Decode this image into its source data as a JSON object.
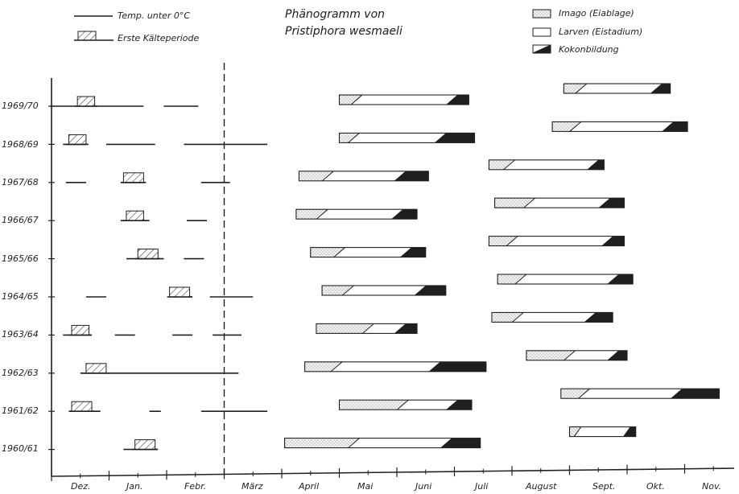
{
  "title": [
    "Phänogramm von",
    "Pristiphora wesmaeli"
  ],
  "legend": {
    "frost": "Temp. unter 0°C",
    "first_cold": "Erste Kälteperiode",
    "imago": "Imago (Eiablage)",
    "larvae": "Larven (Eistadium)",
    "cocoon": "Kokonbildung"
  },
  "colors": {
    "ink": "#1f1f1f",
    "imago_fill": "#eeeeee",
    "larvae_fill": "#ffffff",
    "cocoon_fill": "#1f1f1f",
    "hatch": "#333333"
  },
  "chart_data": {
    "type": "gantt",
    "x_axis": {
      "unit": "month",
      "range": [
        "Nov",
        "Nov"
      ],
      "tick_labels": [
        "Dez.",
        "Jan.",
        "Febr.",
        "März",
        "April",
        "Mai",
        "Juni",
        "Juli",
        "August",
        "Sept.",
        "Okt.",
        "Nov."
      ]
    },
    "divider_month": "März",
    "seasons": [
      {
        "label": "1969/70",
        "frost": [
          [
            -0.02,
            1.6
          ],
          [
            1.95,
            2.55
          ]
        ],
        "first_cold": [
          0.45,
          0.75
        ],
        "generations": [
          {
            "imago": [
              5.0,
              5.4
            ],
            "larvae": [
              5.4,
              7.05
            ],
            "cocoon": [
              7.05,
              7.25
            ]
          },
          {
            "imago": [
              8.9,
              9.3
            ],
            "larvae": [
              9.3,
              10.6
            ],
            "cocoon": [
              10.6,
              10.75
            ]
          }
        ]
      },
      {
        "label": "1968/69",
        "frost": [
          [
            0.2,
            0.6
          ],
          [
            0.95,
            1.8
          ],
          [
            2.3,
            3.75
          ]
        ],
        "first_cold": [
          0.3,
          0.6
        ],
        "generations": [
          {
            "imago": [
              5.0,
              5.35
            ],
            "larvae": [
              5.35,
              6.85
            ],
            "cocoon": [
              6.85,
              7.35
            ]
          },
          {
            "imago": [
              8.7,
              9.2
            ],
            "larvae": [
              9.2,
              10.8
            ],
            "cocoon": [
              10.8,
              11.05
            ]
          }
        ]
      },
      {
        "label": "1967/68",
        "frost": [
          [
            0.25,
            0.6
          ],
          [
            1.2,
            1.6
          ],
          [
            2.6,
            3.1
          ]
        ],
        "first_cold": [
          1.25,
          1.6
        ],
        "generations": [
          {
            "imago": [
              4.3,
              4.9
            ],
            "larvae": [
              4.9,
              6.15
            ],
            "cocoon": [
              6.15,
              6.55
            ]
          },
          {
            "imago": [
              7.6,
              8.05
            ],
            "larvae": [
              8.05,
              9.5
            ],
            "cocoon": [
              9.5,
              9.6
            ]
          }
        ]
      },
      {
        "label": "1966/67",
        "frost": [
          [
            1.2,
            1.7
          ],
          [
            2.35,
            2.7
          ]
        ],
        "first_cold": [
          1.3,
          1.6
        ],
        "generations": [
          {
            "imago": [
              4.25,
              4.8
            ],
            "larvae": [
              4.8,
              6.1
            ],
            "cocoon": [
              6.1,
              6.35
            ]
          },
          {
            "imago": [
              7.7,
              8.4
            ],
            "larvae": [
              8.4,
              9.7
            ],
            "cocoon": [
              9.7,
              9.95
            ]
          }
        ]
      },
      {
        "label": "1965/66",
        "frost": [
          [
            1.3,
            1.95
          ],
          [
            2.3,
            2.65
          ]
        ],
        "first_cold": [
          1.5,
          1.85
        ],
        "generations": [
          {
            "imago": [
              4.5,
              5.1
            ],
            "larvae": [
              5.1,
              6.25
            ],
            "cocoon": [
              6.25,
              6.5
            ]
          },
          {
            "imago": [
              7.6,
              8.1
            ],
            "larvae": [
              8.1,
              9.75
            ],
            "cocoon": [
              9.75,
              9.95
            ]
          }
        ]
      },
      {
        "label": "1964/65",
        "frost": [
          [
            0.6,
            0.95
          ],
          [
            2.05,
            2.45
          ],
          [
            2.75,
            3.5
          ]
        ],
        "first_cold": [
          2.05,
          2.4
        ],
        "generations": [
          {
            "imago": [
              4.7,
              5.25
            ],
            "larvae": [
              5.25,
              6.5
            ],
            "cocoon": [
              6.5,
              6.85
            ]
          },
          {
            "imago": [
              7.75,
              8.25
            ],
            "larvae": [
              8.25,
              9.85
            ],
            "cocoon": [
              9.85,
              10.1
            ]
          }
        ]
      },
      {
        "label": "1963/64",
        "frost": [
          [
            0.2,
            0.7
          ],
          [
            1.1,
            1.45
          ],
          [
            2.1,
            2.45
          ],
          [
            2.8,
            3.3
          ]
        ],
        "first_cold": [
          0.35,
          0.65
        ],
        "generations": [
          {
            "imago": [
              4.6,
              5.6
            ],
            "larvae": [
              5.6,
              6.15
            ],
            "cocoon": [
              6.15,
              6.35
            ]
          },
          {
            "imago": [
              7.65,
              8.2
            ],
            "larvae": [
              8.2,
              9.45
            ],
            "cocoon": [
              9.45,
              9.75
            ]
          }
        ]
      },
      {
        "label": "1962/63",
        "frost": [
          [
            0.5,
            3.25
          ]
        ],
        "first_cold": [
          0.6,
          0.95
        ],
        "generations": [
          {
            "imago": [
              4.4,
              5.05
            ],
            "larvae": [
              5.05,
              6.75
            ],
            "cocoon": [
              6.75,
              7.55
            ]
          },
          {
            "imago": [
              8.25,
              9.1
            ],
            "larvae": [
              9.1,
              9.85
            ],
            "cocoon": [
              9.85,
              10.0
            ]
          }
        ]
      },
      {
        "label": "1961/62",
        "frost": [
          [
            0.3,
            0.85
          ],
          [
            1.7,
            1.9
          ],
          [
            2.6,
            3.75
          ]
        ],
        "first_cold": [
          0.35,
          0.7
        ],
        "generations": [
          {
            "imago": [
              5.0,
              6.2
            ],
            "larvae": [
              6.2,
              7.05
            ],
            "cocoon": [
              7.05,
              7.3
            ]
          },
          {
            "imago": [
              8.85,
              9.35
            ],
            "larvae": [
              9.35,
              10.95
            ],
            "cocoon": [
              10.95,
              11.6
            ]
          }
        ]
      },
      {
        "label": "1960/61",
        "frost": [
          [
            1.25,
            1.85
          ]
        ],
        "first_cold": [
          1.45,
          1.8
        ],
        "generations": [
          {
            "imago": [
              4.05,
              5.35
            ],
            "larvae": [
              5.35,
              6.95
            ],
            "cocoon": [
              6.95,
              7.45
            ]
          },
          {
            "imago": [
              9.0,
              9.2
            ],
            "larvae": [
              9.2,
              10.05
            ],
            "cocoon": [
              10.05,
              10.15
            ]
          }
        ]
      }
    ]
  }
}
